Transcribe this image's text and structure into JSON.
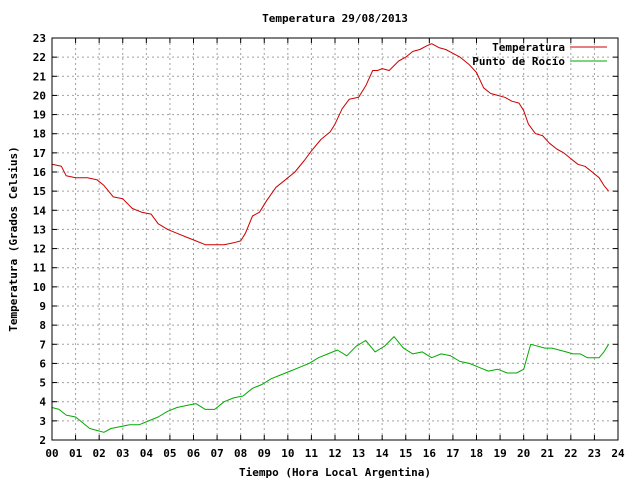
{
  "chart_data": {
    "type": "line",
    "title": "Temperatura 29/08/2013",
    "xlabel": "Tiempo (Hora Local Argentina)",
    "ylabel": "Temperatura (Grados Celsius)",
    "xlim": [
      0,
      24
    ],
    "ylim": [
      2,
      23
    ],
    "x_ticks": [
      "00",
      "01",
      "02",
      "03",
      "04",
      "05",
      "06",
      "07",
      "08",
      "09",
      "10",
      "11",
      "12",
      "13",
      "14",
      "15",
      "16",
      "17",
      "18",
      "19",
      "20",
      "21",
      "22",
      "23",
      "24"
    ],
    "y_ticks": [
      "2",
      "3",
      "4",
      "5",
      "6",
      "7",
      "8",
      "9",
      "10",
      "11",
      "12",
      "13",
      "14",
      "15",
      "16",
      "17",
      "18",
      "19",
      "20",
      "21",
      "22",
      "23"
    ],
    "grid": true,
    "legend_position": "top-right",
    "series": [
      {
        "name": "Temperatura",
        "color": "#cc0000",
        "x": [
          0,
          0.4,
          0.6,
          1.0,
          1.5,
          1.9,
          2.2,
          2.6,
          3.0,
          3.4,
          3.8,
          4.2,
          4.5,
          4.9,
          5.3,
          5.7,
          6.1,
          6.5,
          6.9,
          7.3,
          7.7,
          8.0,
          8.2,
          8.5,
          8.8,
          9.1,
          9.5,
          9.9,
          10.3,
          10.7,
          11.0,
          11.4,
          11.8,
          12.0,
          12.3,
          12.6,
          13.0,
          13.3,
          13.6,
          13.8,
          14.0,
          14.3,
          14.7,
          15.0,
          15.3,
          15.6,
          15.9,
          16.1,
          16.4,
          16.7,
          17.0,
          17.3,
          17.7,
          18.0,
          18.3,
          18.6,
          18.9,
          19.2,
          19.5,
          19.8,
          20.0,
          20.2,
          20.5,
          20.8,
          21.1,
          21.4,
          21.7,
          22.0,
          22.3,
          22.6,
          22.9,
          23.2,
          23.4,
          23.6
        ],
        "y": [
          16.4,
          16.3,
          15.8,
          15.7,
          15.7,
          15.6,
          15.3,
          14.7,
          14.6,
          14.1,
          13.9,
          13.8,
          13.3,
          13.0,
          12.8,
          12.6,
          12.4,
          12.2,
          12.2,
          12.2,
          12.3,
          12.4,
          12.8,
          13.7,
          13.9,
          14.5,
          15.2,
          15.6,
          16.0,
          16.6,
          17.1,
          17.7,
          18.1,
          18.5,
          19.3,
          19.8,
          19.9,
          20.5,
          21.3,
          21.3,
          21.4,
          21.3,
          21.8,
          22.0,
          22.3,
          22.4,
          22.6,
          22.7,
          22.5,
          22.4,
          22.2,
          22.0,
          21.6,
          21.2,
          20.4,
          20.1,
          20.0,
          19.9,
          19.7,
          19.6,
          19.2,
          18.5,
          18.0,
          17.9,
          17.5,
          17.2,
          17.0,
          16.7,
          16.4,
          16.3,
          16.0,
          15.7,
          15.3,
          15.0
        ]
      },
      {
        "name": "Punto de Rocío",
        "color": "#00aa00",
        "x": [
          0,
          0.3,
          0.6,
          1.0,
          1.3,
          1.6,
          1.9,
          2.2,
          2.5,
          2.9,
          3.3,
          3.7,
          4.1,
          4.5,
          4.9,
          5.3,
          5.7,
          6.1,
          6.5,
          6.9,
          7.3,
          7.7,
          8.1,
          8.5,
          8.9,
          9.3,
          9.7,
          10.1,
          10.5,
          10.9,
          11.3,
          11.7,
          12.1,
          12.5,
          12.9,
          13.3,
          13.7,
          14.1,
          14.5,
          14.9,
          15.3,
          15.7,
          16.1,
          16.5,
          16.9,
          17.3,
          17.7,
          18.1,
          18.5,
          18.9,
          19.3,
          19.7,
          20.0,
          20.3,
          20.6,
          20.9,
          21.2,
          21.5,
          21.8,
          22.1,
          22.4,
          22.7,
          23.0,
          23.2,
          23.4,
          23.6
        ],
        "y": [
          3.7,
          3.6,
          3.3,
          3.2,
          2.9,
          2.6,
          2.5,
          2.4,
          2.6,
          2.7,
          2.8,
          2.8,
          3.0,
          3.2,
          3.5,
          3.7,
          3.8,
          3.9,
          3.6,
          3.6,
          4.0,
          4.2,
          4.3,
          4.7,
          4.9,
          5.2,
          5.4,
          5.6,
          5.8,
          6.0,
          6.3,
          6.5,
          6.7,
          6.4,
          6.9,
          7.2,
          6.6,
          6.9,
          7.4,
          6.8,
          6.5,
          6.6,
          6.3,
          6.5,
          6.4,
          6.1,
          6.0,
          5.8,
          5.6,
          5.7,
          5.5,
          5.5,
          5.7,
          7.0,
          6.9,
          6.8,
          6.8,
          6.7,
          6.6,
          6.5,
          6.5,
          6.3,
          6.3,
          6.3,
          6.6,
          7.0
        ]
      }
    ]
  }
}
